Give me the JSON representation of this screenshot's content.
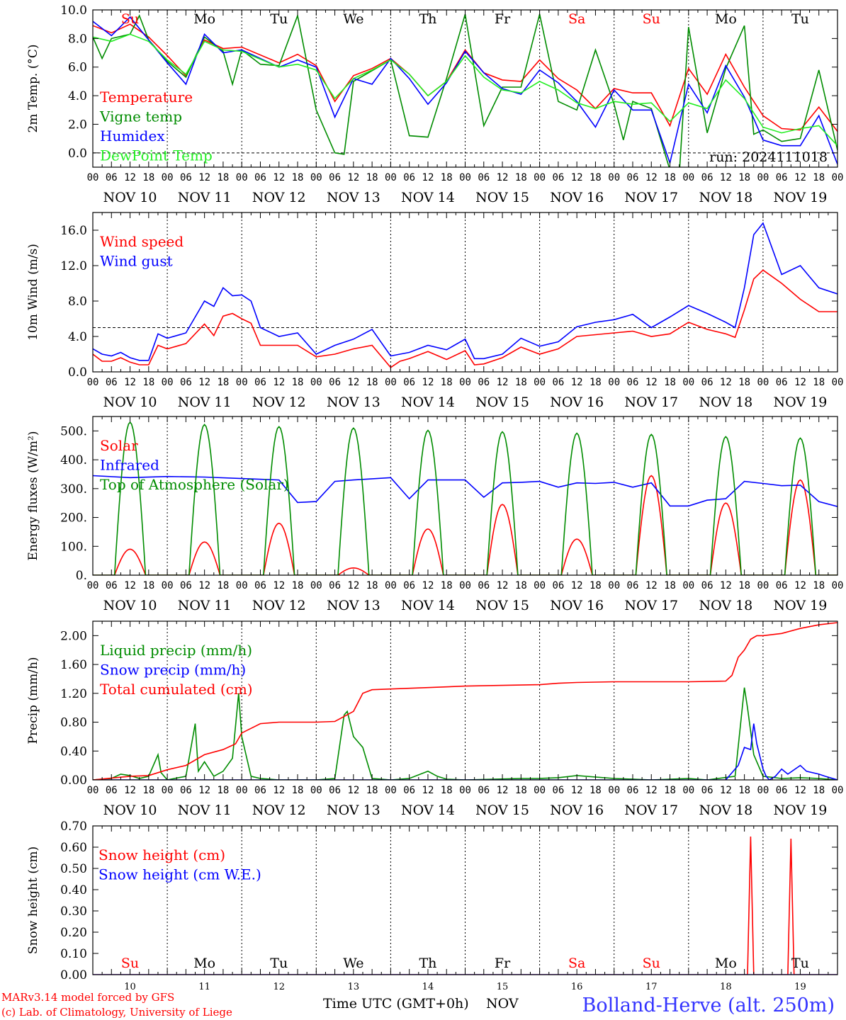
{
  "meta": {
    "run_label": "run: 2024111018",
    "model_credit": "MARv3.14 model forced by GFS",
    "lab_credit": "(c) Lab. of Climatology, University of Liege",
    "xaxis_title": "Time UTC (GMT+0h)",
    "month_label": "NOV",
    "station": "Bolland-Herve (alt. 250m)"
  },
  "days": {
    "weekdays": [
      "Su",
      "Mo",
      "Tu",
      "We",
      "Th",
      "Fr",
      "Sa",
      "Su",
      "Mo",
      "Tu"
    ],
    "weekend_flags": [
      true,
      false,
      false,
      false,
      false,
      false,
      true,
      true,
      false,
      false
    ],
    "dates": [
      "NOV 10",
      "NOV 11",
      "NOV 12",
      "NOV 13",
      "NOV 14",
      "NOV 15",
      "NOV 16",
      "NOV 17",
      "NOV 18",
      "NOV 19"
    ],
    "numbers": [
      "10",
      "11",
      "12",
      "13",
      "14",
      "15",
      "16",
      "17",
      "18",
      "19"
    ],
    "hour_labels": [
      "00",
      "06",
      "12",
      "18"
    ],
    "end_hour_label": "00"
  },
  "colors": {
    "red": "#ff0000",
    "green": "#008c00",
    "blue": "#0000ff",
    "lightgreen": "#22ee22",
    "weekend": "#ff0000",
    "axis": "#000000"
  },
  "chart_data": [
    {
      "type": "line",
      "ylabel": "2m Temp. (°C)",
      "ylim": [
        -1,
        10
      ],
      "yticks": [
        "0.0",
        "2.0",
        "4.0",
        "6.0",
        "8.0",
        "10.0"
      ],
      "ytick_values": [
        0,
        2,
        4,
        6,
        8,
        10
      ],
      "reference_line": 0,
      "show_weekdays": true,
      "x_unit": "hours since NOV 10 00 UTC",
      "series": [
        {
          "name": "Temperature",
          "color": "red",
          "x": [
            0,
            6,
            12,
            18,
            24,
            30,
            36,
            42,
            48,
            60,
            66,
            72,
            78,
            84,
            90,
            96,
            102,
            108,
            114,
            120,
            126,
            132,
            138,
            144,
            150,
            156,
            162,
            168,
            174,
            180,
            186,
            192,
            198,
            204,
            210,
            216,
            222,
            228,
            234,
            240
          ],
          "y": [
            8.9,
            8.4,
            9.0,
            8.1,
            6.8,
            5.4,
            7.9,
            7.3,
            7.4,
            6.3,
            6.9,
            6.1,
            3.6,
            5.4,
            5.9,
            6.6,
            5.5,
            4.0,
            5.0,
            7.2,
            5.6,
            5.1,
            5.0,
            6.5,
            5.2,
            4.4,
            3.1,
            4.5,
            4.2,
            4.2,
            1.9,
            5.9,
            4.1,
            6.9,
            4.6,
            2.6,
            1.7,
            1.6,
            3.2,
            1.5
          ]
        },
        {
          "name": "Vigne temp",
          "color": "green",
          "x": [
            0,
            3,
            6,
            12,
            15,
            18,
            24,
            30,
            36,
            42,
            45,
            48,
            54,
            60,
            66,
            72,
            78,
            81,
            84,
            96,
            102,
            108,
            114,
            120,
            126,
            132,
            138,
            144,
            150,
            156,
            162,
            168,
            171,
            174,
            180,
            186,
            189,
            192,
            198,
            204,
            210,
            213,
            216,
            222,
            228,
            234,
            240
          ],
          "y": [
            8.1,
            6.6,
            8.0,
            8.3,
            9.6,
            7.9,
            6.4,
            5.3,
            8.1,
            7.1,
            4.8,
            7.2,
            6.2,
            6.1,
            9.6,
            3.0,
            0.0,
            -0.1,
            5.0,
            6.5,
            1.2,
            1.1,
            5.2,
            9.7,
            1.9,
            4.6,
            4.6,
            9.7,
            3.6,
            3.0,
            7.2,
            3.4,
            0.9,
            3.6,
            3.1,
            -1.2,
            -1.5,
            8.8,
            1.4,
            5.9,
            8.9,
            1.3,
            1.6,
            0.8,
            1.0,
            5.8,
            0.2
          ]
        },
        {
          "name": "Humidex",
          "color": "blue",
          "x": [
            0,
            6,
            12,
            18,
            24,
            30,
            36,
            42,
            48,
            60,
            66,
            72,
            78,
            84,
            90,
            96,
            102,
            108,
            114,
            120,
            126,
            132,
            138,
            144,
            150,
            156,
            162,
            168,
            174,
            180,
            186,
            192,
            198,
            204,
            210,
            216,
            222,
            228,
            234,
            240
          ],
          "y": [
            9.2,
            8.2,
            9.5,
            7.9,
            6.3,
            4.8,
            8.3,
            7.0,
            7.2,
            6.0,
            6.5,
            6.0,
            2.5,
            5.2,
            4.8,
            6.6,
            5.2,
            3.4,
            4.9,
            7.1,
            5.6,
            4.5,
            4.1,
            5.8,
            4.9,
            3.6,
            1.8,
            4.4,
            3.0,
            3.0,
            -0.7,
            4.8,
            2.8,
            6.1,
            3.9,
            0.9,
            0.5,
            0.5,
            2.6,
            -0.8
          ]
        },
        {
          "name": "DewPoint Temp",
          "color": "lightgreen",
          "x": [
            0,
            6,
            12,
            18,
            24,
            30,
            36,
            42,
            48,
            60,
            66,
            72,
            78,
            84,
            90,
            96,
            102,
            108,
            114,
            120,
            126,
            132,
            138,
            144,
            150,
            156,
            162,
            168,
            174,
            180,
            186,
            192,
            198,
            204,
            210,
            216,
            222,
            228,
            234,
            240
          ],
          "y": [
            8.1,
            7.8,
            8.3,
            7.8,
            6.5,
            5.5,
            7.8,
            7.2,
            7.1,
            6.0,
            6.2,
            5.8,
            3.8,
            5.2,
            5.8,
            6.5,
            5.5,
            4.0,
            5.0,
            6.8,
            5.3,
            4.4,
            4.2,
            5.0,
            4.4,
            3.5,
            3.1,
            3.6,
            3.4,
            3.5,
            2.2,
            3.5,
            3.1,
            5.1,
            3.8,
            1.8,
            1.4,
            1.7,
            1.9,
            0.5
          ]
        }
      ]
    },
    {
      "type": "line",
      "ylabel": "10m Wind (m/s)",
      "ylim": [
        0,
        18
      ],
      "yticks": [
        "0.0",
        "4.0",
        "8.0",
        "12.0",
        "16.0"
      ],
      "ytick_values": [
        0,
        4,
        8,
        12,
        16
      ],
      "reference_line": 5,
      "x_unit": "hours since NOV 10 00 UTC",
      "series": [
        {
          "name": "Wind speed",
          "color": "red",
          "x": [
            0,
            3,
            6,
            9,
            12,
            15,
            18,
            21,
            24,
            30,
            36,
            39,
            42,
            45,
            48,
            51,
            54,
            60,
            66,
            72,
            78,
            84,
            90,
            96,
            99,
            102,
            108,
            114,
            120,
            123,
            126,
            132,
            138,
            144,
            150,
            156,
            162,
            168,
            174,
            180,
            186,
            192,
            198,
            204,
            207,
            210,
            213,
            216,
            222,
            228,
            234,
            240
          ],
          "y": [
            2.0,
            1.2,
            1.2,
            1.6,
            1.1,
            0.8,
            0.8,
            3.0,
            2.6,
            3.2,
            5.4,
            4.1,
            6.3,
            6.6,
            6.0,
            5.5,
            3.0,
            3.0,
            3.0,
            1.7,
            2.0,
            2.6,
            3.0,
            0.5,
            1.2,
            1.5,
            2.3,
            1.4,
            2.4,
            0.8,
            0.9,
            1.6,
            2.8,
            2.0,
            2.6,
            4.0,
            4.2,
            4.4,
            4.6,
            4.0,
            4.3,
            5.6,
            4.8,
            4.3,
            3.9,
            7.0,
            10.5,
            11.5,
            10.0,
            8.2,
            6.8,
            6.8
          ]
        },
        {
          "name": "Wind gust",
          "color": "blue",
          "x": [
            0,
            3,
            6,
            9,
            12,
            15,
            18,
            21,
            24,
            30,
            36,
            39,
            42,
            45,
            48,
            51,
            54,
            60,
            66,
            72,
            78,
            84,
            90,
            96,
            99,
            102,
            108,
            114,
            120,
            123,
            126,
            132,
            138,
            144,
            150,
            156,
            162,
            168,
            174,
            180,
            186,
            192,
            198,
            204,
            207,
            210,
            213,
            216,
            222,
            228,
            234,
            240
          ],
          "y": [
            2.6,
            2.0,
            1.8,
            2.2,
            1.6,
            1.3,
            1.3,
            4.3,
            3.8,
            4.4,
            8.0,
            7.4,
            9.5,
            8.6,
            8.7,
            8.0,
            5.0,
            4.0,
            4.4,
            2.0,
            3.0,
            3.7,
            4.8,
            1.8,
            2.0,
            2.2,
            3.0,
            2.5,
            3.7,
            1.5,
            1.5,
            2.0,
            3.8,
            2.9,
            3.4,
            5.1,
            5.6,
            5.9,
            6.5,
            5.0,
            6.2,
            7.5,
            6.6,
            5.6,
            5.0,
            9.5,
            15.5,
            16.8,
            11.0,
            12.0,
            9.5,
            8.8
          ]
        }
      ]
    },
    {
      "type": "line",
      "ylabel": "Energy fluxes (W/m²)",
      "ylim": [
        0,
        550
      ],
      "yticks": [
        "0.",
        "100.",
        "200.",
        "300.",
        "400.",
        "500."
      ],
      "ytick_values": [
        0,
        100,
        200,
        300,
        400,
        500
      ],
      "x_unit": "hours since NOV 10 00 UTC",
      "series": [
        {
          "name": "Solar",
          "color": "red",
          "peaks": [
            90,
            115,
            180,
            25,
            160,
            245,
            125,
            345,
            250,
            330
          ]
        },
        {
          "name": "Infrared",
          "color": "blue",
          "x": [
            0,
            12,
            24,
            36,
            48,
            60,
            66,
            72,
            78,
            84,
            96,
            102,
            108,
            120,
            126,
            132,
            138,
            144,
            150,
            156,
            162,
            168,
            174,
            180,
            186,
            192,
            198,
            204,
            210,
            216,
            222,
            228,
            234,
            240
          ],
          "y": [
            345,
            338,
            342,
            340,
            335,
            330,
            252,
            255,
            325,
            330,
            338,
            265,
            330,
            330,
            270,
            320,
            322,
            325,
            305,
            320,
            318,
            322,
            305,
            320,
            240,
            240,
            260,
            265,
            325,
            318,
            310,
            312,
            255,
            238
          ]
        },
        {
          "name": "Top of Atmosphere (Solar)",
          "color": "green",
          "peaks": [
            530,
            522,
            515,
            510,
            502,
            497,
            492,
            488,
            480,
            475
          ]
        }
      ]
    },
    {
      "type": "line",
      "ylabel": "Precip (mm/h)",
      "ylim": [
        0,
        2.2
      ],
      "yticks": [
        "0.00",
        "0.40",
        "0.80",
        "1.20",
        "1.60",
        "2.00"
      ],
      "ytick_values": [
        0,
        0.4,
        0.8,
        1.2,
        1.6,
        2.0
      ],
      "x_unit": "hours since NOV 10 00 UTC",
      "series": [
        {
          "name": "Liquid precip (mm/h)",
          "color": "green",
          "x": [
            0,
            6,
            9,
            12,
            15,
            18,
            21,
            22,
            24,
            30,
            33,
            34,
            36,
            39,
            42,
            45,
            47,
            48,
            51,
            54,
            60,
            72,
            78,
            81,
            82,
            84,
            87,
            90,
            96,
            102,
            108,
            111,
            114,
            120,
            138,
            144,
            150,
            156,
            168,
            180,
            192,
            198,
            207,
            210,
            211,
            213,
            216,
            222,
            228,
            234,
            240
          ],
          "y": [
            0,
            0.02,
            0.08,
            0.06,
            0.02,
            0.05,
            0.35,
            0.1,
            0,
            0.05,
            0.78,
            0.12,
            0.25,
            0.05,
            0.12,
            0.3,
            1.2,
            0.6,
            0.05,
            0.02,
            0,
            0,
            0.02,
            0.9,
            0.95,
            0.6,
            0.45,
            0.02,
            0,
            0.02,
            0.12,
            0.05,
            0.01,
            0,
            0.02,
            0.02,
            0.03,
            0.06,
            0.02,
            0,
            0.02,
            0,
            0.05,
            1.28,
            1.0,
            0.35,
            0.05,
            0.02,
            0.03,
            0.02,
            0
          ]
        },
        {
          "name": "Snow precip (mm/h)",
          "color": "blue",
          "x": [
            0,
            204,
            208,
            210,
            212,
            213,
            214,
            216,
            217,
            218,
            220,
            222,
            224,
            228,
            230,
            234,
            236,
            240
          ],
          "y": [
            0,
            0,
            0.2,
            0.45,
            0.42,
            0.78,
            0.5,
            0.15,
            0.05,
            0,
            0.05,
            0.15,
            0.08,
            0.2,
            0.12,
            0.08,
            0.05,
            0
          ]
        },
        {
          "name": "Total cumulated (cm)",
          "color": "red",
          "x": [
            0,
            12,
            18,
            24,
            30,
            36,
            42,
            46,
            48,
            54,
            60,
            72,
            78,
            84,
            87,
            90,
            96,
            108,
            120,
            144,
            150,
            156,
            168,
            192,
            204,
            206,
            208,
            210,
            212,
            214,
            216,
            222,
            228,
            234,
            240
          ],
          "y": [
            0,
            0.05,
            0.06,
            0.14,
            0.2,
            0.35,
            0.42,
            0.5,
            0.65,
            0.78,
            0.8,
            0.8,
            0.81,
            0.95,
            1.2,
            1.25,
            1.26,
            1.28,
            1.3,
            1.32,
            1.34,
            1.35,
            1.36,
            1.36,
            1.37,
            1.45,
            1.7,
            1.8,
            1.95,
            2.0,
            2.0,
            2.03,
            2.1,
            2.15,
            2.18
          ]
        }
      ]
    },
    {
      "type": "line",
      "ylabel": "Snow height (cm)",
      "ylim": [
        0,
        0.7
      ],
      "yticks": [
        "0.00",
        "0.10",
        "0.20",
        "0.30",
        "0.40",
        "0.50",
        "0.60",
        "0.70"
      ],
      "ytick_values": [
        0,
        0.1,
        0.2,
        0.3,
        0.4,
        0.5,
        0.6,
        0.7
      ],
      "show_weekdays_bottom": true,
      "x_unit": "hours since NOV 10 00 UTC",
      "series": [
        {
          "name": "Snow height (cm)",
          "color": "red",
          "x": [
            0,
            211,
            212,
            213,
            224,
            225,
            226,
            240
          ],
          "y": [
            0,
            0,
            0.65,
            0,
            0,
            0.64,
            0,
            0
          ]
        },
        {
          "name": "Snow height (cm W.E.)",
          "color": "blue",
          "x": [
            0,
            240
          ],
          "y": [
            0,
            0
          ]
        }
      ]
    }
  ]
}
